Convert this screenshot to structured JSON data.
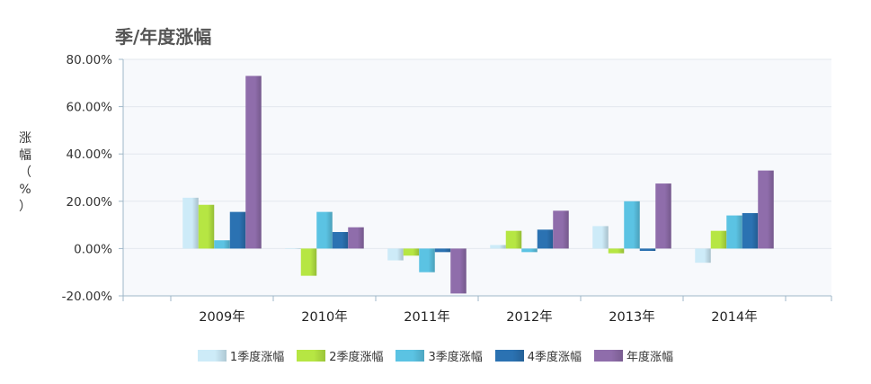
{
  "chart_data": {
    "type": "bar",
    "title": "季/年度涨幅",
    "ylabel": "涨幅（%）",
    "categories": [
      "2009年",
      "2010年",
      "2011年",
      "2012年",
      "2013年",
      "2014年"
    ],
    "ylim": [
      -20,
      80
    ],
    "yticks": [
      "80.00%",
      "60.00%",
      "40.00%",
      "20.00%",
      "0.00%",
      "-20.00%"
    ],
    "ytick_values": [
      80,
      60,
      40,
      20,
      0,
      -20
    ],
    "grid": true,
    "legend_position": "bottom",
    "series": [
      {
        "name": "1季度涨幅",
        "color": "#cdebf8",
        "values": [
          21.5,
          0.0,
          -5.0,
          1.5,
          9.5,
          -6.0
        ]
      },
      {
        "name": "2季度涨幅",
        "color": "#b6e643",
        "values": [
          18.5,
          -11.5,
          -3.0,
          7.5,
          -2.0,
          7.5
        ]
      },
      {
        "name": "3季度涨幅",
        "color": "#5bc3e3",
        "values": [
          3.5,
          15.5,
          -10.0,
          -1.5,
          20.0,
          14.0
        ]
      },
      {
        "name": "4季度涨幅",
        "color": "#2b72b2",
        "values": [
          15.5,
          7.0,
          -1.5,
          8.0,
          -1.0,
          15.0
        ]
      },
      {
        "name": "年度涨幅",
        "color": "#8f6dab",
        "values": [
          73.0,
          9.0,
          -19.0,
          16.0,
          27.5,
          33.0
        ]
      }
    ]
  }
}
